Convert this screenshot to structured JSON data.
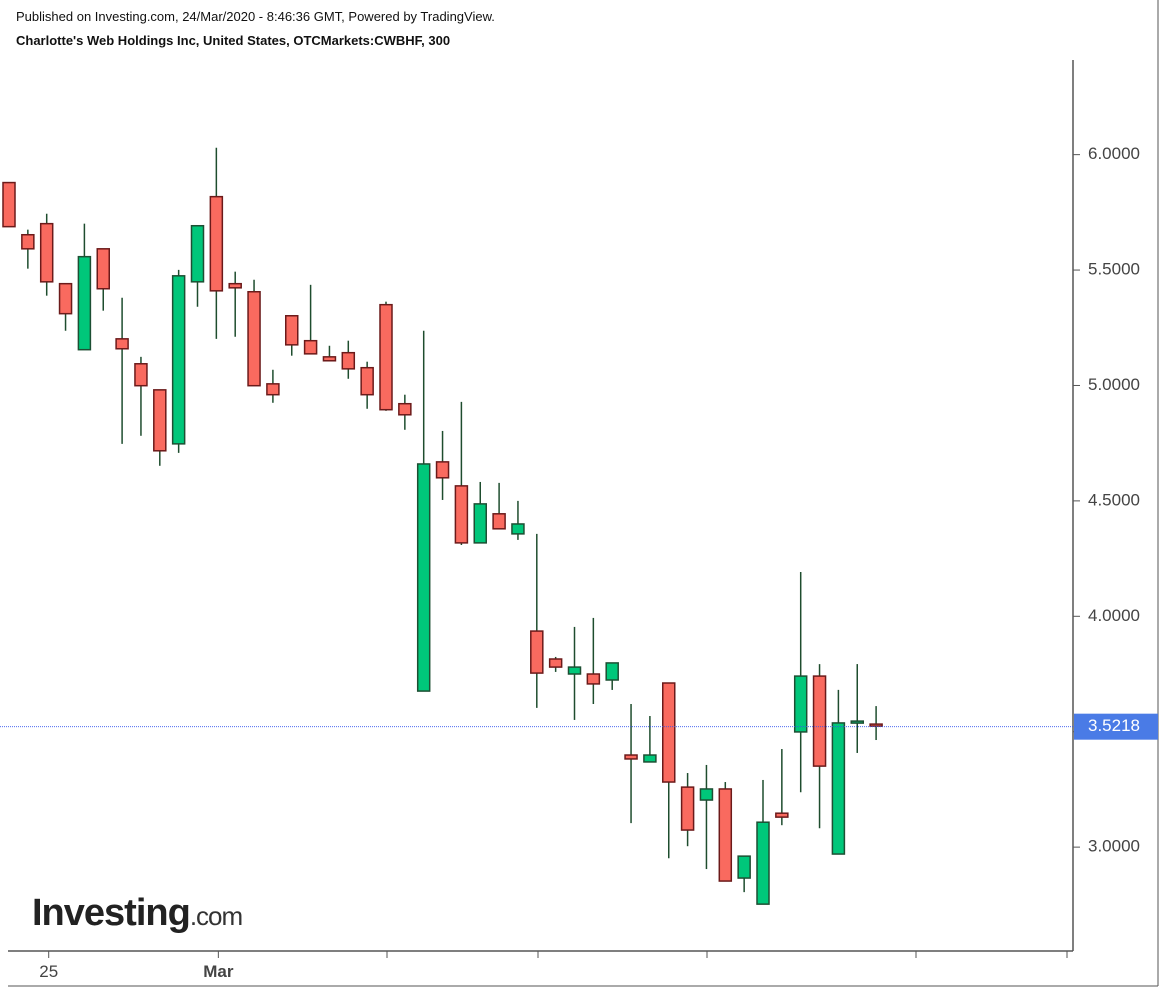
{
  "chart_data": {
    "type": "candlestick",
    "subtitle": "Published on Investing.com, 24/Mar/2020 - 8:46:36 GMT, Powered by TradingView.",
    "title": "Charlotte's Web Holdings Inc, United States, OTCMarkets:CWBHF, 300",
    "categories": [
      null,
      null,
      "25",
      null,
      null,
      null,
      null,
      null,
      null,
      null,
      null,
      "Mar",
      null,
      null,
      null,
      null,
      null,
      null,
      null,
      null,
      null,
      null,
      null,
      null,
      null,
      null,
      null,
      null,
      null,
      null,
      null,
      null,
      null,
      null,
      null,
      null,
      null,
      null,
      null,
      null,
      null,
      null,
      null,
      null,
      null,
      null,
      null
    ],
    "open": [
      5.879,
      5.653,
      5.701,
      5.441,
      5.155,
      5.592,
      5.202,
      5.094,
      4.981,
      4.747,
      5.449,
      5.818,
      5.441,
      5.406,
      5.007,
      5.302,
      5.194,
      5.124,
      5.142,
      5.077,
      5.35,
      4.921,
      3.676,
      4.669,
      4.565,
      4.318,
      4.444,
      4.357,
      3.936,
      3.815,
      3.75,
      3.75,
      3.724,
      3.399,
      3.369,
      3.711,
      3.26,
      3.204,
      3.252,
      2.866,
      2.753,
      3.147,
      3.499,
      3.741,
      2.97,
      3.538,
      3.533
    ],
    "high": [
      5.879,
      5.675,
      5.744,
      5.441,
      5.701,
      5.592,
      5.38,
      5.124,
      4.981,
      5.501,
      5.692,
      6.03,
      5.493,
      5.458,
      5.068,
      5.302,
      5.436,
      5.172,
      5.194,
      5.103,
      5.363,
      4.96,
      5.237,
      4.803,
      4.929,
      4.582,
      4.578,
      4.5,
      4.357,
      3.824,
      3.954,
      3.993,
      3.798,
      3.62,
      3.568,
      3.711,
      3.321,
      3.356,
      3.282,
      2.961,
      3.291,
      3.425,
      4.192,
      3.793,
      3.681,
      3.793,
      3.611
    ],
    "low": [
      5.688,
      5.506,
      5.389,
      5.237,
      5.155,
      5.324,
      4.747,
      4.782,
      4.652,
      4.708,
      5.341,
      5.202,
      5.211,
      4.999,
      4.925,
      5.129,
      5.137,
      5.107,
      5.029,
      4.899,
      4.89,
      4.808,
      3.676,
      4.504,
      4.309,
      4.318,
      4.379,
      4.331,
      3.603,
      3.759,
      3.551,
      3.62,
      3.681,
      3.104,
      3.369,
      2.952,
      3.004,
      2.905,
      2.853,
      2.805,
      2.753,
      3.095,
      3.238,
      3.082,
      2.97,
      3.408,
      3.464
    ],
    "close": [
      5.688,
      5.592,
      5.449,
      5.311,
      5.558,
      5.419,
      5.159,
      4.999,
      4.717,
      5.475,
      5.692,
      5.41,
      5.423,
      4.999,
      4.96,
      5.176,
      5.137,
      5.107,
      5.072,
      4.96,
      4.895,
      4.873,
      4.66,
      4.6,
      4.318,
      4.487,
      4.379,
      4.4,
      3.754,
      3.78,
      3.78,
      3.707,
      3.798,
      3.382,
      3.399,
      3.282,
      3.074,
      3.252,
      2.853,
      2.961,
      3.108,
      3.13,
      3.741,
      3.351,
      3.538,
      3.546,
      3.525
    ],
    "up_color": "#00c77a",
    "down_color": "#f96a5f",
    "ylim": [
      2.55,
      6.41
    ],
    "yticks": [
      {
        "value": 3.0,
        "label": "3.0000"
      },
      {
        "value": 3.5,
        "label": "3.5000"
      },
      {
        "value": 4.0,
        "label": "4.0000"
      },
      {
        "value": 4.5,
        "label": "4.5000"
      },
      {
        "value": 5.0,
        "label": "5.0000"
      },
      {
        "value": 5.5,
        "label": "5.5000"
      },
      {
        "value": 6.0,
        "label": "6.0000"
      }
    ],
    "last_price": 3.5218
  },
  "logo": {
    "brand": "Investing",
    "suffix": ".com"
  }
}
